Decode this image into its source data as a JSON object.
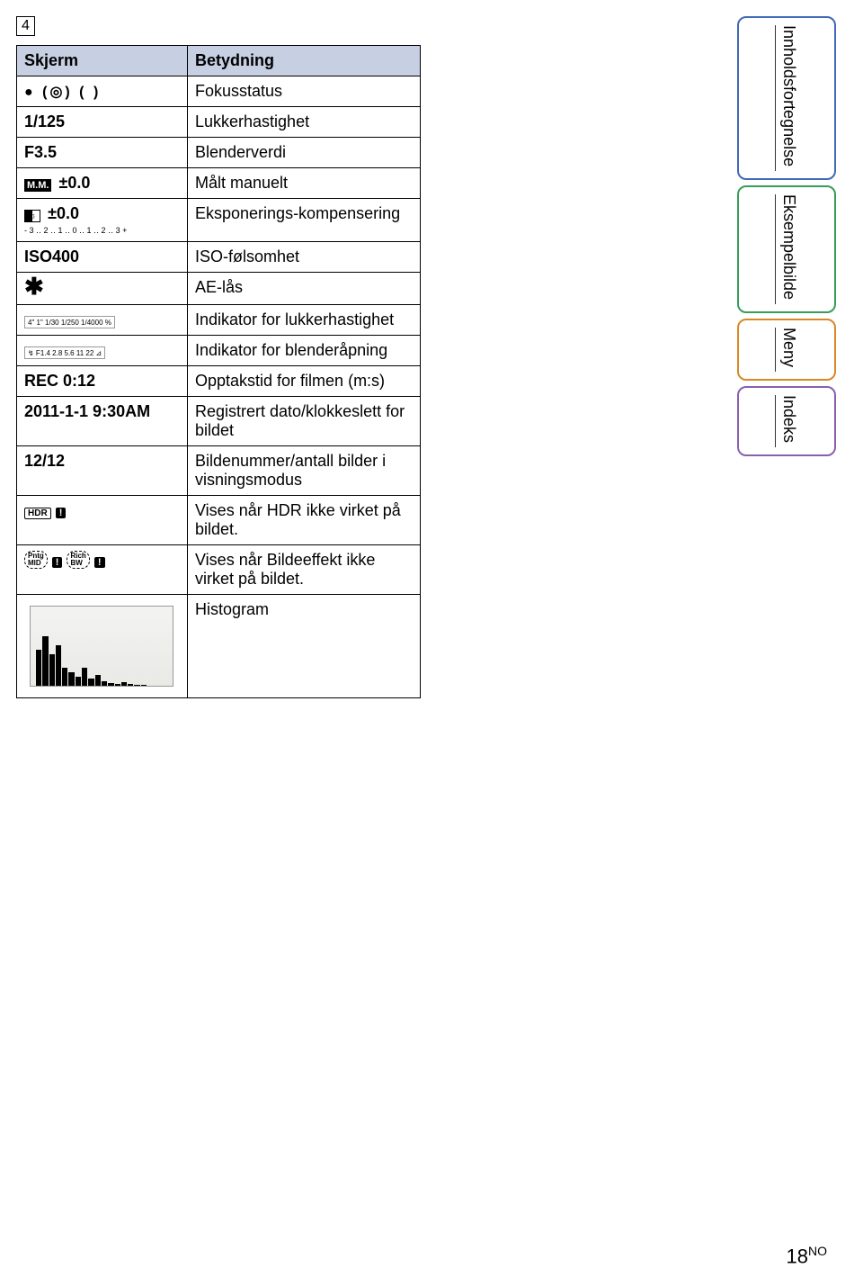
{
  "page_marker": "4",
  "table": {
    "headers": [
      "Skjerm",
      "Betydning"
    ],
    "rows": [
      {
        "col1_type": "icons_focus",
        "col2": "Fokusstatus"
      },
      {
        "col1_text": "1/125",
        "col2": "Lukkerhastighet"
      },
      {
        "col1_text": "F3.5",
        "col2": "Blenderverdi"
      },
      {
        "col1_type": "mm_badge",
        "col1_text": "±0.0",
        "col2": "Målt manuelt"
      },
      {
        "col1_type": "exp_comp",
        "col1_text": "±0.0",
        "col1_scale": "-3‥2‥1‥0‥1‥2‥3+",
        "col2": "Eksponerings-kompensering"
      },
      {
        "col1_text": "ISO400",
        "col2": "ISO-følsomhet"
      },
      {
        "col1_type": "asterisk",
        "col2": "AE-lås"
      },
      {
        "col1_type": "shutter_scale",
        "col1_scale": "4\" 1\" 1/30 1/250 1/4000 %",
        "col2": "Indikator for lukkerhastighet"
      },
      {
        "col1_type": "aperture_scale",
        "col1_scale": "↯ F1.4 2.8 5.6 11 22 ⊿",
        "col2": "Indikator for blenderåpning"
      },
      {
        "col1_text": "REC 0:12",
        "col2": "Opptakstid for filmen (m:s)"
      },
      {
        "col1_text": "2011-1-1 9:30AM",
        "col2": "Registrert dato/klokkeslett for bildet"
      },
      {
        "col1_text": "12/12",
        "col2": "Bildenummer/antall bilder i visningsmodus"
      },
      {
        "col1_type": "hdr_badge",
        "col2": "Vises når HDR ikke virket på bildet."
      },
      {
        "col1_type": "effect_badge",
        "col2": "Vises når Bildeeffekt ikke virket på bildet."
      },
      {
        "col1_type": "histogram",
        "col2": "Histogram"
      }
    ]
  },
  "tabs": [
    {
      "label": "Innholdsfortegnelse",
      "color": "blue"
    },
    {
      "label": "Eksempelbilde",
      "color": "green"
    },
    {
      "label": "Meny",
      "color": "orange"
    },
    {
      "label": "Indeks",
      "color": "purple"
    }
  ],
  "page_number": "18",
  "page_number_suffix": "NO",
  "histogram_heights": [
    40,
    55,
    35,
    45,
    20,
    15,
    10,
    20,
    8,
    12,
    5,
    3,
    2,
    4,
    2,
    1,
    1,
    0,
    0,
    0
  ],
  "colors": {
    "header_bg": "#c7cfe2",
    "tab_blue": "#4169b8",
    "tab_green": "#3a9c5a",
    "tab_orange": "#d98827",
    "tab_purple": "#8a5fb0"
  }
}
